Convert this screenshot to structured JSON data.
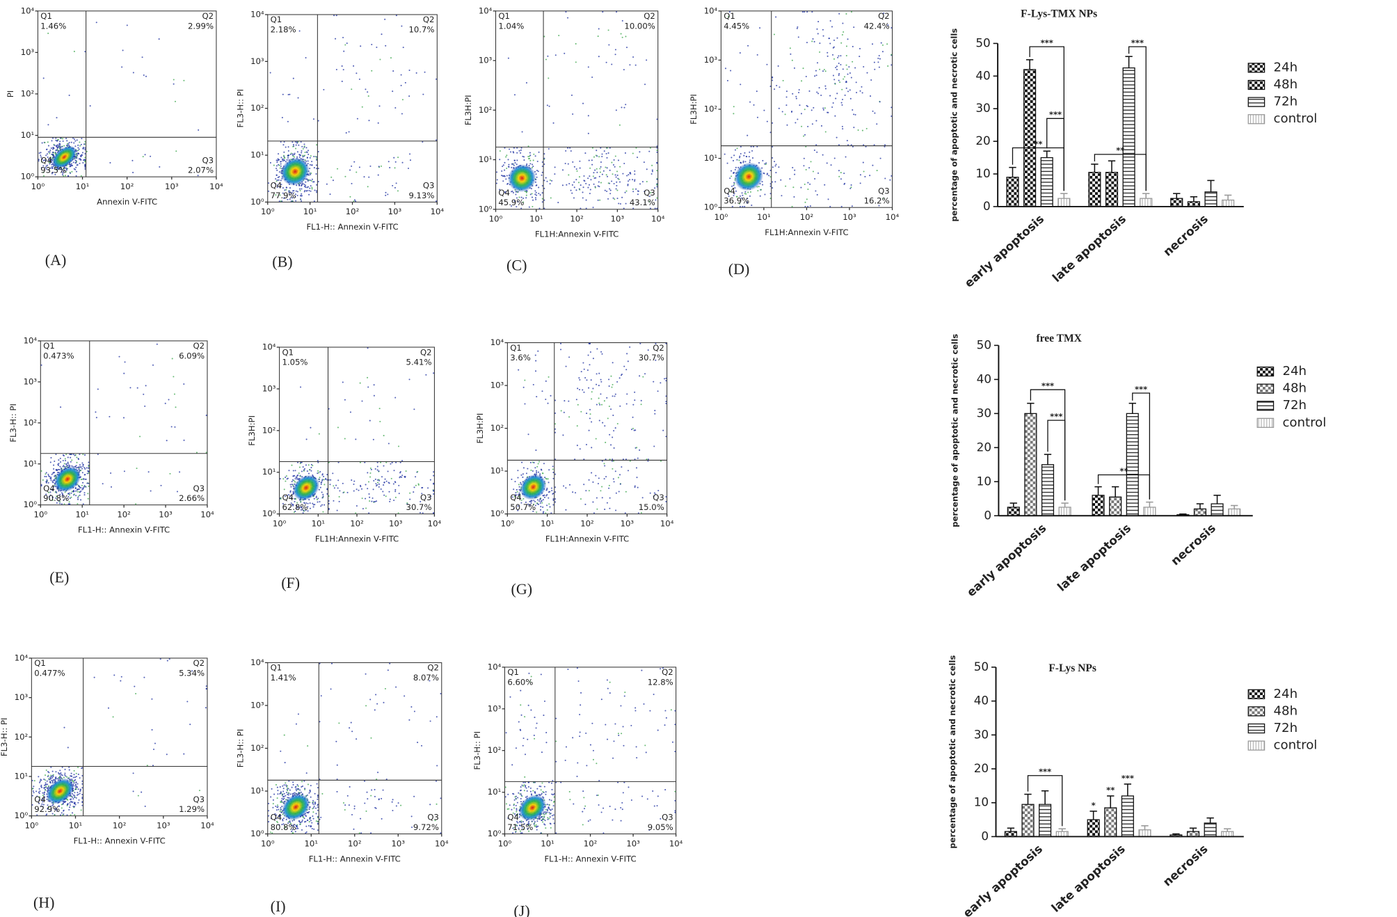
{
  "flow_axis": {
    "lim": [
      1,
      10000
    ],
    "ticks": [
      {
        "value": 1,
        "label": "10⁰"
      },
      {
        "value": 10,
        "label": "10¹"
      },
      {
        "value": 100,
        "label": "10²"
      },
      {
        "value": 1000,
        "label": "10³"
      },
      {
        "value": 10000,
        "label": "10⁴"
      }
    ]
  },
  "panels": [
    {
      "label": "(A)",
      "xlabel": "Annexin V-FITC",
      "ylabel": "PI",
      "gate": [
        12,
        9
      ],
      "quadrants": [
        {
          "name": "Q1",
          "value": "1.46%"
        },
        {
          "name": "Q2",
          "value": "2.99%"
        },
        {
          "name": "Q3",
          "value": "2.07%"
        },
        {
          "name": "Q4",
          "value": "93.5%"
        }
      ]
    },
    {
      "label": "(B)",
      "xlabel": "FL1-H:: Annexin V-FITC",
      "ylabel": "FL3-H:: PI",
      "gate": [
        15,
        20
      ],
      "quadrants": [
        {
          "name": "Q1",
          "value": "2.18%"
        },
        {
          "name": "Q2",
          "value": "10.7%"
        },
        {
          "name": "Q3",
          "value": "9.13%"
        },
        {
          "name": "Q4",
          "value": "77.9%"
        }
      ]
    },
    {
      "label": "(C)",
      "xlabel": "FL1H:Annexin V-FITC",
      "ylabel": "FL3H:PI",
      "gate": [
        15,
        18
      ],
      "quadrants": [
        {
          "name": "Q1",
          "value": "1.04%"
        },
        {
          "name": "Q2",
          "value": "10.00%"
        },
        {
          "name": "Q3",
          "value": "43.1%"
        },
        {
          "name": "Q4",
          "value": "45.9%"
        }
      ]
    },
    {
      "label": "(D)",
      "xlabel": "FL1H:Annexin V-FITC",
      "ylabel": "FL3H:PI",
      "gate": [
        15,
        18
      ],
      "quadrants": [
        {
          "name": "Q1",
          "value": "4.45%"
        },
        {
          "name": "Q2",
          "value": "42.4%"
        },
        {
          "name": "Q3",
          "value": "16.2%"
        },
        {
          "name": "Q4",
          "value": "36.9%"
        }
      ]
    },
    {
      "label": "(E)",
      "xlabel": "FL1-H:: Annexin V-FITC",
      "ylabel": "FL3-H:: PI",
      "gate": [
        15,
        18
      ],
      "quadrants": [
        {
          "name": "Q1",
          "value": "0.473%"
        },
        {
          "name": "Q2",
          "value": "6.09%"
        },
        {
          "name": "Q3",
          "value": "2.66%"
        },
        {
          "name": "Q4",
          "value": "90.8%"
        }
      ]
    },
    {
      "label": "(F)",
      "xlabel": "FL1H:Annexin V-FITC",
      "ylabel": "FL3H:PI",
      "gate": [
        18,
        18
      ],
      "quadrants": [
        {
          "name": "Q1",
          "value": "1.05%"
        },
        {
          "name": "Q2",
          "value": "5.41%"
        },
        {
          "name": "Q3",
          "value": "30.7%"
        },
        {
          "name": "Q4",
          "value": "62.8%"
        }
      ]
    },
    {
      "label": "(G)",
      "xlabel": "FL1H:Annexin V-FITC",
      "ylabel": "FL3H:PI",
      "gate": [
        15,
        18
      ],
      "quadrants": [
        {
          "name": "Q1",
          "value": "3.6%"
        },
        {
          "name": "Q2",
          "value": "30.7%"
        },
        {
          "name": "Q3",
          "value": "15.0%"
        },
        {
          "name": "Q4",
          "value": "50.7%"
        }
      ]
    },
    {
      "label": "(H)",
      "xlabel": "FL1-H:: Annexin V-FITC",
      "ylabel": "FL3-H:: PI",
      "gate": [
        15,
        18
      ],
      "quadrants": [
        {
          "name": "Q1",
          "value": "0.477%"
        },
        {
          "name": "Q2",
          "value": "5.34%"
        },
        {
          "name": "Q3",
          "value": "1.29%"
        },
        {
          "name": "Q4",
          "value": "92.9%"
        }
      ]
    },
    {
      "label": "(I)",
      "xlabel": "FL1-H:: Annexin V-FITC",
      "ylabel": "FL3-H:: PI",
      "gate": [
        15,
        18
      ],
      "quadrants": [
        {
          "name": "Q1",
          "value": "1.41%"
        },
        {
          "name": "Q2",
          "value": "8.07%"
        },
        {
          "name": "Q3",
          "value": "9.72%"
        },
        {
          "name": "Q4",
          "value": "80.8%"
        }
      ]
    },
    {
      "label": "(J)",
      "xlabel": "FL1-H:: Annexin V-FITC",
      "ylabel": "FL3-H:: PI",
      "gate": [
        15,
        18
      ],
      "quadrants": [
        {
          "name": "Q1",
          "value": "6.60%"
        },
        {
          "name": "Q2",
          "value": "12.8%"
        },
        {
          "name": "Q3",
          "value": "9.05%"
        },
        {
          "name": "Q4",
          "value": "71.5%"
        }
      ]
    }
  ],
  "chart_data": [
    {
      "type": "bar",
      "title": "F-Lys-TMX NPs",
      "ylabel": "percentage of apoptotic and necrotic cells",
      "categories": [
        "early apoptosis",
        "late apoptosis",
        "necrosis"
      ],
      "ylim": [
        0,
        50
      ],
      "yticks": [
        0,
        10,
        20,
        30,
        40,
        50
      ],
      "series": [
        {
          "name": "24h",
          "pattern": "checker-dark",
          "values": [
            9,
            10.5,
            2.5
          ],
          "errors": [
            3,
            2.5,
            1.5
          ]
        },
        {
          "name": "48h",
          "pattern": "checker-dark",
          "values": [
            42,
            10.5,
            1.5
          ],
          "errors": [
            3,
            3.5,
            1.5
          ]
        },
        {
          "name": "72h",
          "pattern": "hstripe",
          "values": [
            15,
            42.5,
            4.5
          ],
          "errors": [
            2,
            3.5,
            3.5
          ]
        },
        {
          "name": "control",
          "pattern": "vstripe",
          "values": [
            2.5,
            2.5,
            2
          ],
          "errors": [
            1.5,
            1.5,
            1.5
          ]
        }
      ],
      "annotations": [
        {
          "text": "***",
          "category": 0,
          "from": 1,
          "to": 3,
          "y": 49
        },
        {
          "text": "***",
          "category": 0,
          "from": 2,
          "to": 3,
          "y": 27
        },
        {
          "text": "**",
          "category": 0,
          "from": 0,
          "to": 3,
          "y": 18
        },
        {
          "text": "**",
          "category": 1,
          "from": 0,
          "to": 3,
          "y": 16
        },
        {
          "text": "***",
          "category": 1,
          "from": 2,
          "to": 3,
          "y": 49
        }
      ]
    },
    {
      "type": "bar",
      "title": "free TMX",
      "ylabel": "percentage of apoptotic and necrotic cells",
      "categories": [
        "early apoptosis",
        "late apoptosis",
        "necrosis"
      ],
      "ylim": [
        0,
        50
      ],
      "yticks": [
        0,
        10,
        20,
        30,
        40,
        50
      ],
      "series": [
        {
          "name": "24h",
          "pattern": "checker-dark",
          "values": [
            2.5,
            6,
            0.3
          ],
          "errors": [
            1.2,
            2.5,
            0.2
          ]
        },
        {
          "name": "48h",
          "pattern": "checker-light",
          "values": [
            30,
            5.5,
            2
          ],
          "errors": [
            3,
            3,
            1.5
          ]
        },
        {
          "name": "72h",
          "pattern": "hstripe",
          "values": [
            15,
            30,
            3.5
          ],
          "errors": [
            3,
            3,
            2.5
          ]
        },
        {
          "name": "control",
          "pattern": "vstripe",
          "values": [
            2.5,
            2.5,
            2
          ],
          "errors": [
            1.2,
            1.5,
            1
          ]
        }
      ],
      "annotations": [
        {
          "text": "***",
          "category": 0,
          "from": 1,
          "to": 3,
          "y": 37
        },
        {
          "text": "***",
          "category": 0,
          "from": 2,
          "to": 3,
          "y": 28
        },
        {
          "text": "**",
          "category": 1,
          "from": 0,
          "to": 3,
          "y": 12
        },
        {
          "text": "***",
          "category": 1,
          "from": 2,
          "to": 3,
          "y": 36
        }
      ]
    },
    {
      "type": "bar",
      "title": "F-Lys NPs",
      "ylabel": "percentage of apoptotic and necrotic cells",
      "categories": [
        "early apoptosis",
        "late apoptosis",
        "necrosis"
      ],
      "ylim": [
        0,
        50
      ],
      "yticks": [
        0,
        10,
        20,
        30,
        40,
        50
      ],
      "series": [
        {
          "name": "24h",
          "pattern": "checker-dark",
          "values": [
            1.5,
            5,
            0.5
          ],
          "errors": [
            1,
            2.5,
            0.3
          ]
        },
        {
          "name": "48h",
          "pattern": "checker-light",
          "values": [
            9.5,
            8.5,
            1.5
          ],
          "errors": [
            3,
            3.5,
            1
          ]
        },
        {
          "name": "72h",
          "pattern": "hstripe",
          "values": [
            9.5,
            12,
            4
          ],
          "errors": [
            4,
            3.5,
            1.5
          ]
        },
        {
          "name": "control",
          "pattern": "vstripe",
          "values": [
            1.5,
            2,
            1.5
          ],
          "errors": [
            0.8,
            1.2,
            0.8
          ]
        }
      ],
      "annotations": [
        {
          "text": "***",
          "category": 0,
          "from": 1,
          "to": 3,
          "y": 18
        },
        {
          "text": "*",
          "category": 1,
          "series": 0
        },
        {
          "text": "**",
          "category": 1,
          "series": 1
        },
        {
          "text": "***",
          "category": 1,
          "series": 2
        }
      ]
    }
  ]
}
